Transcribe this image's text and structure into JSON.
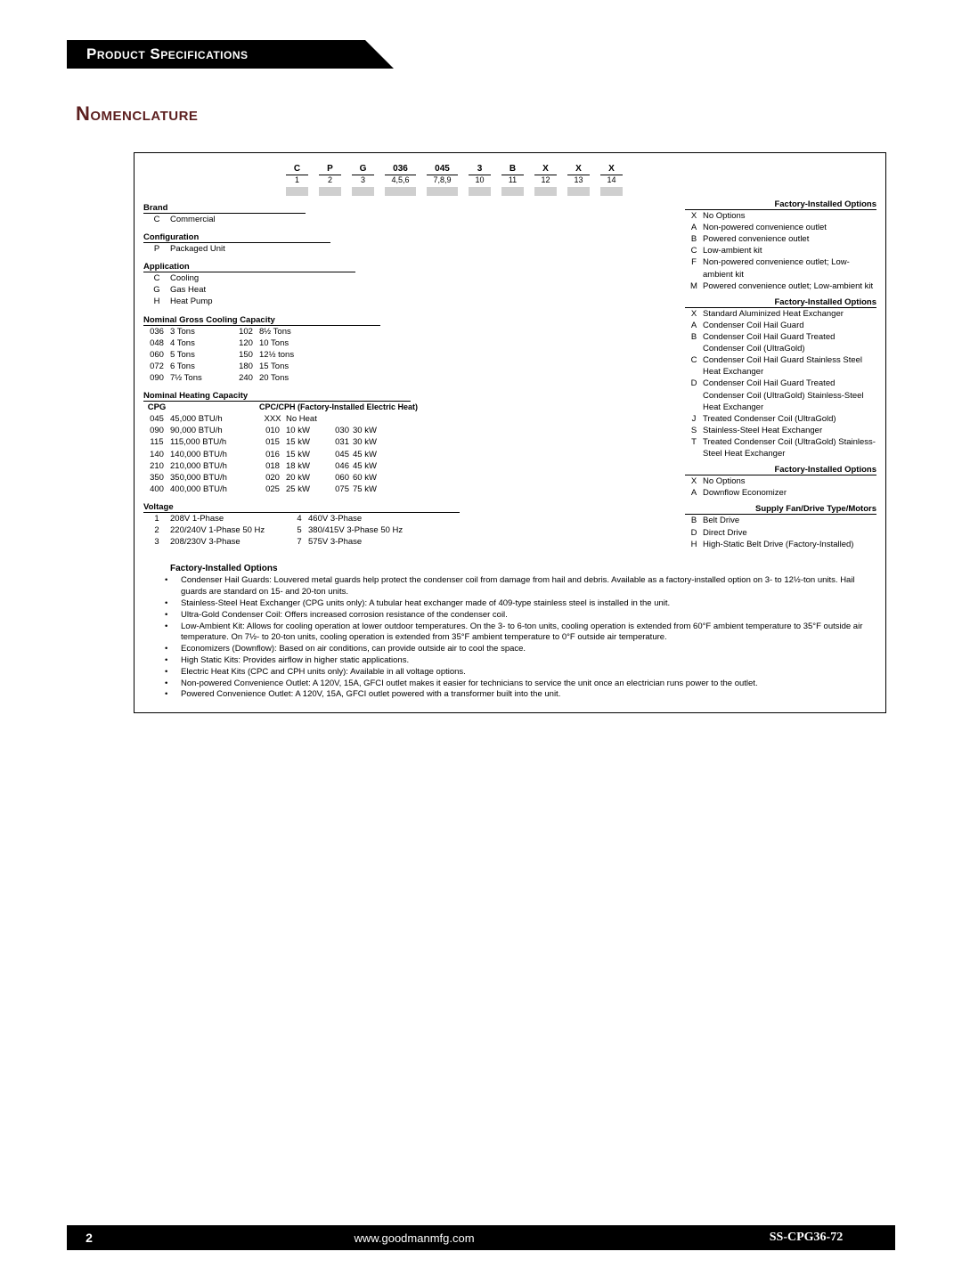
{
  "header": {
    "title": "Product Specifications"
  },
  "subtitle": "Nomenclature",
  "top": {
    "letters": [
      "C",
      "P",
      "G",
      "036",
      "045",
      "3",
      "B",
      "X",
      "X",
      "X"
    ],
    "positions": [
      "1",
      "2",
      "3",
      "4,5,6",
      "7,8,9",
      "10",
      "11",
      "12",
      "13",
      "14"
    ],
    "widths": [
      25,
      25,
      25,
      35,
      35,
      25,
      25,
      25,
      25,
      25
    ]
  },
  "sections": {
    "brand": {
      "title": "Brand",
      "rows": [
        [
          "C",
          "Commercial"
        ]
      ]
    },
    "config": {
      "title": "Configuration",
      "rows": [
        [
          "P",
          "Packaged Unit"
        ]
      ]
    },
    "app": {
      "title": "Application",
      "rows": [
        [
          "C",
          "Cooling"
        ],
        [
          "G",
          "Gas Heat"
        ],
        [
          "H",
          "Heat Pump"
        ]
      ]
    },
    "cooling": {
      "title": "Nominal Gross Cooling Capacity",
      "rows": [
        [
          "036",
          "3 Tons",
          "102",
          "8½ Tons"
        ],
        [
          "048",
          "4 Tons",
          "120",
          "10 Tons"
        ],
        [
          "060",
          "5 Tons",
          "150",
          "12½ tons"
        ],
        [
          "072",
          "6 Tons",
          "180",
          "15 Tons"
        ],
        [
          "090",
          "7½ Tons",
          "240",
          "20 Tons"
        ]
      ]
    },
    "heating": {
      "title": "Nominal Heating Capacity",
      "subtitle": "CPC/CPH (Factory-Installed Electric Heat)",
      "cpg": "CPG",
      "rows": [
        [
          "045",
          "45,000 BTU/h",
          "XXX",
          "No Heat",
          "",
          ""
        ],
        [
          "090",
          "90,000 BTU/h",
          "010",
          "10 kW",
          "030",
          "30 kW"
        ],
        [
          "115",
          "115,000 BTU/h",
          "015",
          "15 kW",
          "031",
          "30 kW"
        ],
        [
          "140",
          "140,000 BTU/h",
          "016",
          "15 kW",
          "045",
          "45 kW"
        ],
        [
          "210",
          "210,000 BTU/h",
          "018",
          "18 kW",
          "046",
          "45 kW"
        ],
        [
          "350",
          "350,000 BTU/h",
          "020",
          "20 kW",
          "060",
          "60 kW"
        ],
        [
          "400",
          "400,000 BTU/h",
          "025",
          "25 kW",
          "075",
          "75 kW"
        ]
      ]
    },
    "voltage": {
      "title": "Voltage",
      "rows": [
        [
          "1",
          "208V 1-Phase",
          "4",
          "460V 3-Phase"
        ],
        [
          "2",
          "220/240V 1-Phase 50 Hz",
          "5",
          "380/415V 3-Phase 50 Hz"
        ],
        [
          "3",
          "208/230V 3-Phase",
          "7",
          "575V 3-Phase"
        ]
      ]
    }
  },
  "right": {
    "groups": [
      {
        "title": "Factory-Installed Options",
        "rows": [
          [
            "X",
            "No Options"
          ],
          [
            "A",
            "Non-powered convenience outlet"
          ],
          [
            "B",
            "Powered convenience outlet"
          ],
          [
            "C",
            "Low-ambient kit"
          ],
          [
            "F",
            "Non-powered convenience outlet; Low-ambient kit"
          ],
          [
            "M",
            "Powered convenience outlet; Low-ambient kit"
          ]
        ]
      },
      {
        "title": "Factory-Installed  Options",
        "rows": [
          [
            "X",
            "Standard Aluminized Heat Exchanger"
          ],
          [
            "A",
            "Condenser Coil Hail Guard"
          ],
          [
            "B",
            "Condenser Coil Hail Guard Treated Condenser Coil (UltraGold)"
          ],
          [
            "C",
            "Condenser Coil Hail Guard Stainless Steel Heat Exchanger"
          ],
          [
            "D",
            "Condenser Coil Hail Guard Treated Condenser Coil (UltraGold) Stainless-Steel Heat Exchanger"
          ],
          [
            "J",
            "Treated Condenser Coil (UltraGold)"
          ],
          [
            "S",
            "Stainless-Steel Heat Exchanger"
          ],
          [
            "T",
            "Treated Condenser Coil (UltraGold) Stainless-Steel Heat Exchanger"
          ]
        ]
      },
      {
        "title": "Factory-Installed Options",
        "rows": [
          [
            "X",
            "No Options"
          ],
          [
            "A",
            "Downflow Economizer"
          ]
        ]
      },
      {
        "title": "Supply Fan/Drive Type/Motors",
        "rows": [
          [
            "B",
            "Belt Drive"
          ],
          [
            "D",
            "Direct Drive"
          ],
          [
            "H",
            "High-Static Belt Drive (Factory-Installed)"
          ]
        ]
      }
    ]
  },
  "notes": {
    "title": "Factory-Installed Options",
    "items": [
      "Condenser Hail Guards: Louvered metal guards help protect the condenser coil from damage from hail and debris.  Available as a factory-installed option on 3- to 12½-ton units. Hail guards are standard on 15- and 20-ton units.",
      "Stainless-Steel Heat Exchanger (CPG units only): A tubular heat exchanger made of 409-type stainless steel is installed in the unit.",
      "Ultra-Gold Condenser Coil: Offers increased corrosion resistance of the condenser coil.",
      "Low-Ambient Kit: Allows for cooling operation at lower outdoor temperatures. On the 3- to 6-ton units, cooling operation is extended from 60°F ambient temperature to 35°F outside air temperature. On 7½- to 20-ton units, cooling operation is extended from 35°F ambient temperature to 0°F outside air temperature.",
      "Economizers (Downflow): Based on air conditions, can provide outside air to cool the space.",
      "High Static Kits: Provides airflow in higher static applications.",
      "Electric Heat Kits (CPC and CPH units only): Available in all voltage options.",
      "Non-powered Convenience Outlet: A 120V, 15A, GFCI outlet makes it easier for technicians to service the unit once an electrician runs power to the outlet.",
      "Powered Convenience Outlet: A 120V, 15A, GFCI outlet powered with a transformer built into the unit."
    ]
  },
  "footer": {
    "page": "2",
    "url": "www.goodmanmfg.com",
    "docid": "SS-CPG36-72"
  }
}
